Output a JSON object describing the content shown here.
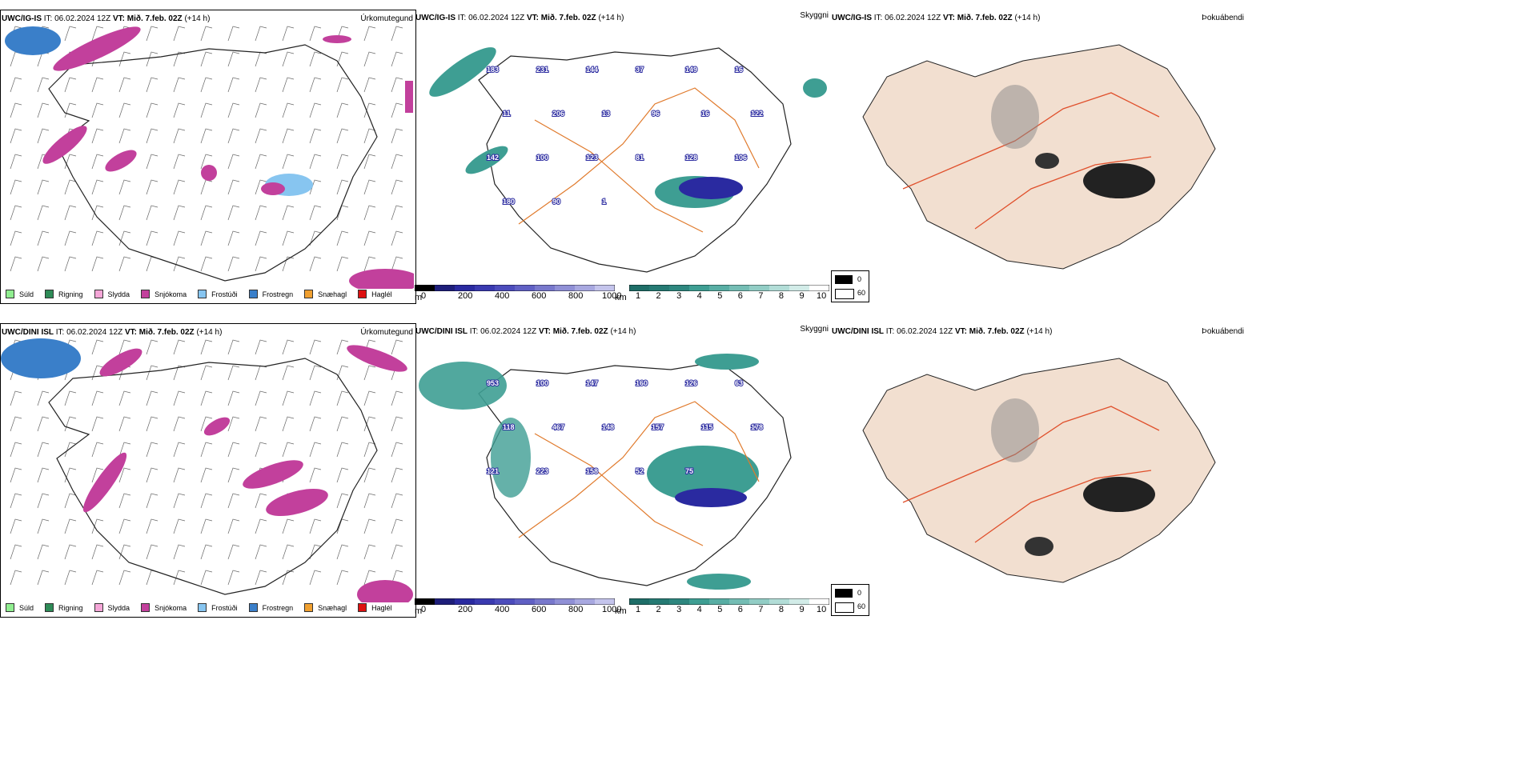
{
  "rows": [
    {
      "model": "UWC/IG-IS",
      "it_label": "IT:",
      "it_value": "06.02.2024 12Z",
      "vt_label": "VT:",
      "vt_value": "Mið. 7.feb. 02Z",
      "lead": "(+14 h)",
      "precip_title": "Úrkomutegund",
      "vis_title": "Skyggni",
      "fog_title": "Þokuábendi",
      "numbers": [
        "183",
        "231",
        "144",
        "37",
        "149",
        "16",
        "11",
        "206",
        "13",
        "96",
        "16",
        "122",
        "142",
        "100",
        "123",
        "81",
        "128",
        "106",
        "180",
        "90",
        "1"
      ]
    },
    {
      "model": "UWC/DINI ISL",
      "it_label": "IT:",
      "it_value": "06.02.2024 12Z",
      "vt_label": "VT:",
      "vt_value": "Mið. 7.feb. 02Z",
      "lead": "(+14 h)",
      "precip_title": "Úrkomutegund",
      "vis_title": "Skyggni",
      "fog_title": "Þokuábendi",
      "numbers": [
        "953",
        "100",
        "147",
        "160",
        "126",
        "63",
        "118",
        "467",
        "148",
        "157",
        "115",
        "178",
        "121",
        "223",
        "158",
        "52",
        "75"
      ]
    }
  ],
  "precip_legend": [
    {
      "label": "Súld",
      "color": "#90ee90"
    },
    {
      "label": "Rigning",
      "color": "#2e8b57"
    },
    {
      "label": "Slydda",
      "color": "#f4a6d7"
    },
    {
      "label": "Snjókoma",
      "color": "#c2409c"
    },
    {
      "label": "Frostúði",
      "color": "#87c5f0"
    },
    {
      "label": "Frostregn",
      "color": "#3a7fc9"
    },
    {
      "label": "Snæhagl",
      "color": "#f0a030"
    },
    {
      "label": "Haglél",
      "color": "#dd1111"
    }
  ],
  "height_scale": {
    "unit": "m",
    "ticks": [
      "0",
      "200",
      "400",
      "600",
      "800",
      "1000"
    ]
  },
  "vis_scale": {
    "unit": "km",
    "ticks": [
      "1",
      "2",
      "3",
      "4",
      "5",
      "6",
      "7",
      "8",
      "9",
      "10"
    ]
  },
  "fog_scale": {
    "ticks": [
      "0",
      "60"
    ]
  },
  "colors": {
    "snow": "#c2409c",
    "frostregn": "#3a7fc9",
    "frostudi": "#87c5f0",
    "teal": "#3e9e93",
    "navy": "#2a2aa0",
    "roads": "#e07a2c",
    "land": "#f2dfd0",
    "fogdark": "#222222"
  }
}
